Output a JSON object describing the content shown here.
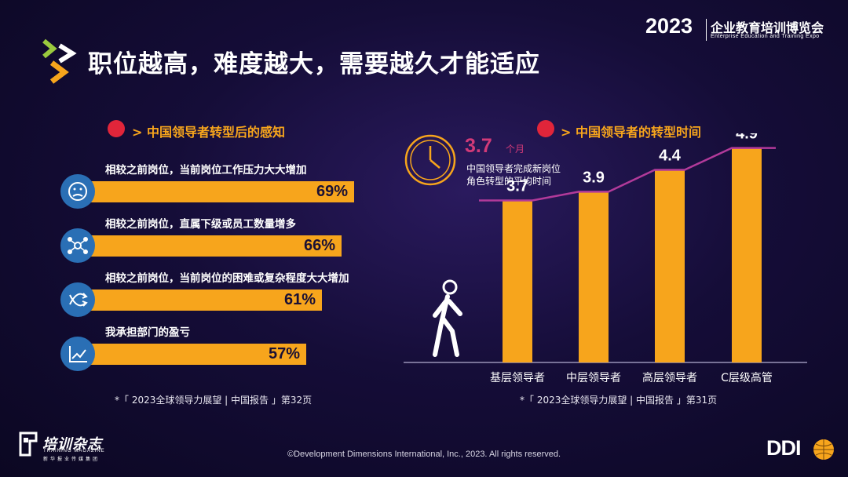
{
  "header": {
    "title": "职位越高，难度越大，需要越久才能适应",
    "expo_year": "2023",
    "expo_name_cn": "企业教育培训博览会",
    "expo_name_en": "Enterprise Education and Training Expo"
  },
  "left_section": {
    "title": "中国领导者转型后的感知",
    "items": [
      {
        "label": "相较之前岗位，当前岗位工作压力大大增加",
        "value": 69,
        "display": "69%",
        "icon": "stressed-face-icon"
      },
      {
        "label": "相较之前岗位，直属下级或员工数量增多",
        "value": 66,
        "display": "66%",
        "icon": "network-people-icon"
      },
      {
        "label": "相较之前岗位，当前岗位的困难或复杂程度大大增加",
        "value": 61,
        "display": "61%",
        "icon": "complex-arrows-icon"
      },
      {
        "label": "我承担部门的盈亏",
        "value": 57,
        "display": "57%",
        "icon": "trend-chart-icon"
      }
    ],
    "source": "*「 2023全球领导力展望 | 中国报告 」第32页"
  },
  "right_section": {
    "title": "中国领导者的转型时间",
    "callout": {
      "value": "3.7",
      "unit": "个月",
      "desc_line1": "中国领导者完成新岗位",
      "desc_line2": "角色转型的平均时间",
      "icon": "clock-icon"
    },
    "source": "*「 2023全球领导力展望 | 中国报告 」第31页"
  },
  "chart_data": [
    {
      "type": "bar",
      "orientation": "horizontal",
      "categories": [
        "相较之前岗位，当前岗位工作压力大大增加",
        "相较之前岗位，直属下级或员工数量增多",
        "相较之前岗位，当前岗位的困难或复杂程度大大增加",
        "我承担部门的盈亏"
      ],
      "values": [
        69,
        66,
        61,
        57
      ],
      "title": "中国领导者转型后的感知",
      "unit": "%"
    },
    {
      "type": "bar",
      "categories": [
        "基层领导者",
        "中层领导者",
        "高层领导者",
        "C层级高管"
      ],
      "values": [
        3.7,
        3.9,
        4.4,
        4.9
      ],
      "title": "中国领导者的转型时间",
      "overlay_line": true,
      "grid": false
    }
  ],
  "footer": {
    "copyright": "©Development Dimensions International, Inc., 2023. All rights reserved.",
    "magazine_cn": "培训杂志",
    "magazine_en": "TRAINING MAGAZINE",
    "magazine_sub": "新华报业传媒集团",
    "ddi_logo": "DDI"
  },
  "colors": {
    "accent": "#f7a51c",
    "magenta": "#d23a78",
    "icon_blue": "#2a6fb5",
    "section_icon": "#e1253a",
    "bg": "#150d38"
  }
}
